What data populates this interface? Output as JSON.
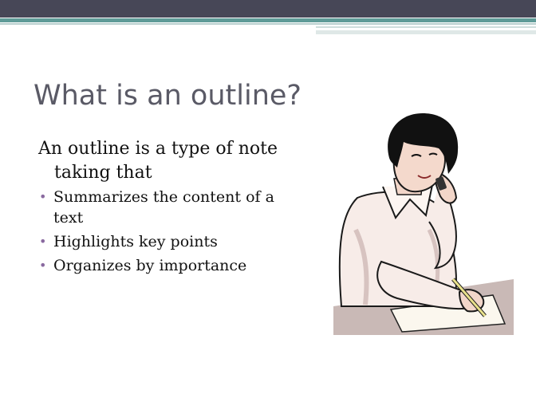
{
  "slide": {
    "title": "What is an outline?",
    "lead": "An outline is a type of note taking that",
    "bullets": [
      "Summarizes the content of a text",
      "Highlights key points",
      "Organizes by importance"
    ],
    "bullet_glyph": "•"
  },
  "colors": {
    "header_bar": "#474757",
    "accent_teal": "#5f9b98",
    "title_text": "#5a5a66",
    "bullet": "#8a6aa0"
  },
  "icons": {
    "clipart": "woman-on-phone-writing-illustration"
  }
}
